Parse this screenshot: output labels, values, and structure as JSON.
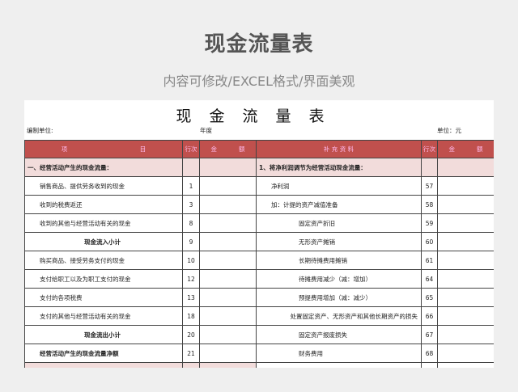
{
  "banner": {
    "title": "现金流量表",
    "subtitle": "内容可修改/EXCEL格式/界面美观"
  },
  "sheet": {
    "title": "现金流量表",
    "unit_label": "编制单位:",
    "year_label": "年度",
    "currency_label": "单位：元"
  },
  "header": {
    "item_left": "项",
    "item_right": "目",
    "row_no": "行次",
    "amount_left": "金",
    "amount_right": "额",
    "supplement": "补 充 资 料",
    "row_no2": "行次",
    "amount2_left": "金",
    "amount2_right": "额"
  },
  "colors": {
    "header_bg": "#c0504d",
    "section_bg": "#f2dcdb"
  },
  "rows": [
    {
      "left": "一、经营活动产生的现金流量：",
      "left_no": "",
      "right": "1、将净利润调节为经营活动现金流量：",
      "right_no": ""
    },
    {
      "left": "销售商品、提供劳务收到的现金",
      "left_no": "1",
      "right": "净利润",
      "right_no": "57"
    },
    {
      "left": "收到的税费返还",
      "left_no": "3",
      "right": "加：计提的资产减值准备",
      "right_no": "58"
    },
    {
      "left": "收到的其他与经营活动有关的现金",
      "left_no": "8",
      "right": "固定资产折旧",
      "right_no": "59"
    },
    {
      "left": "现金流入小计",
      "left_no": "9",
      "right": "无形资产摊销",
      "right_no": "60"
    },
    {
      "left": "购买商品、接受劳务支付的现金",
      "left_no": "10",
      "right": "长期待摊费用摊销",
      "right_no": "61"
    },
    {
      "left": "支付给职工以及为职工支付的现金",
      "left_no": "12",
      "right": "待摊费用减少（减：增加）",
      "right_no": "64"
    },
    {
      "left": "支付的各项税费",
      "left_no": "13",
      "right": "预提费用增加（减：减少）",
      "right_no": "65"
    },
    {
      "left": "支付的其他与经营活动有关的现金",
      "left_no": "18",
      "right": "处置固定资产、无形资产和其他长期资产的损失",
      "right_no": "66"
    },
    {
      "left": "现金流出小计",
      "left_no": "20",
      "right": "固定资产报废损失",
      "right_no": "67"
    },
    {
      "left": "经营活动产生的现金流量净额",
      "left_no": "21",
      "right": "财务费用",
      "right_no": "68"
    }
  ]
}
